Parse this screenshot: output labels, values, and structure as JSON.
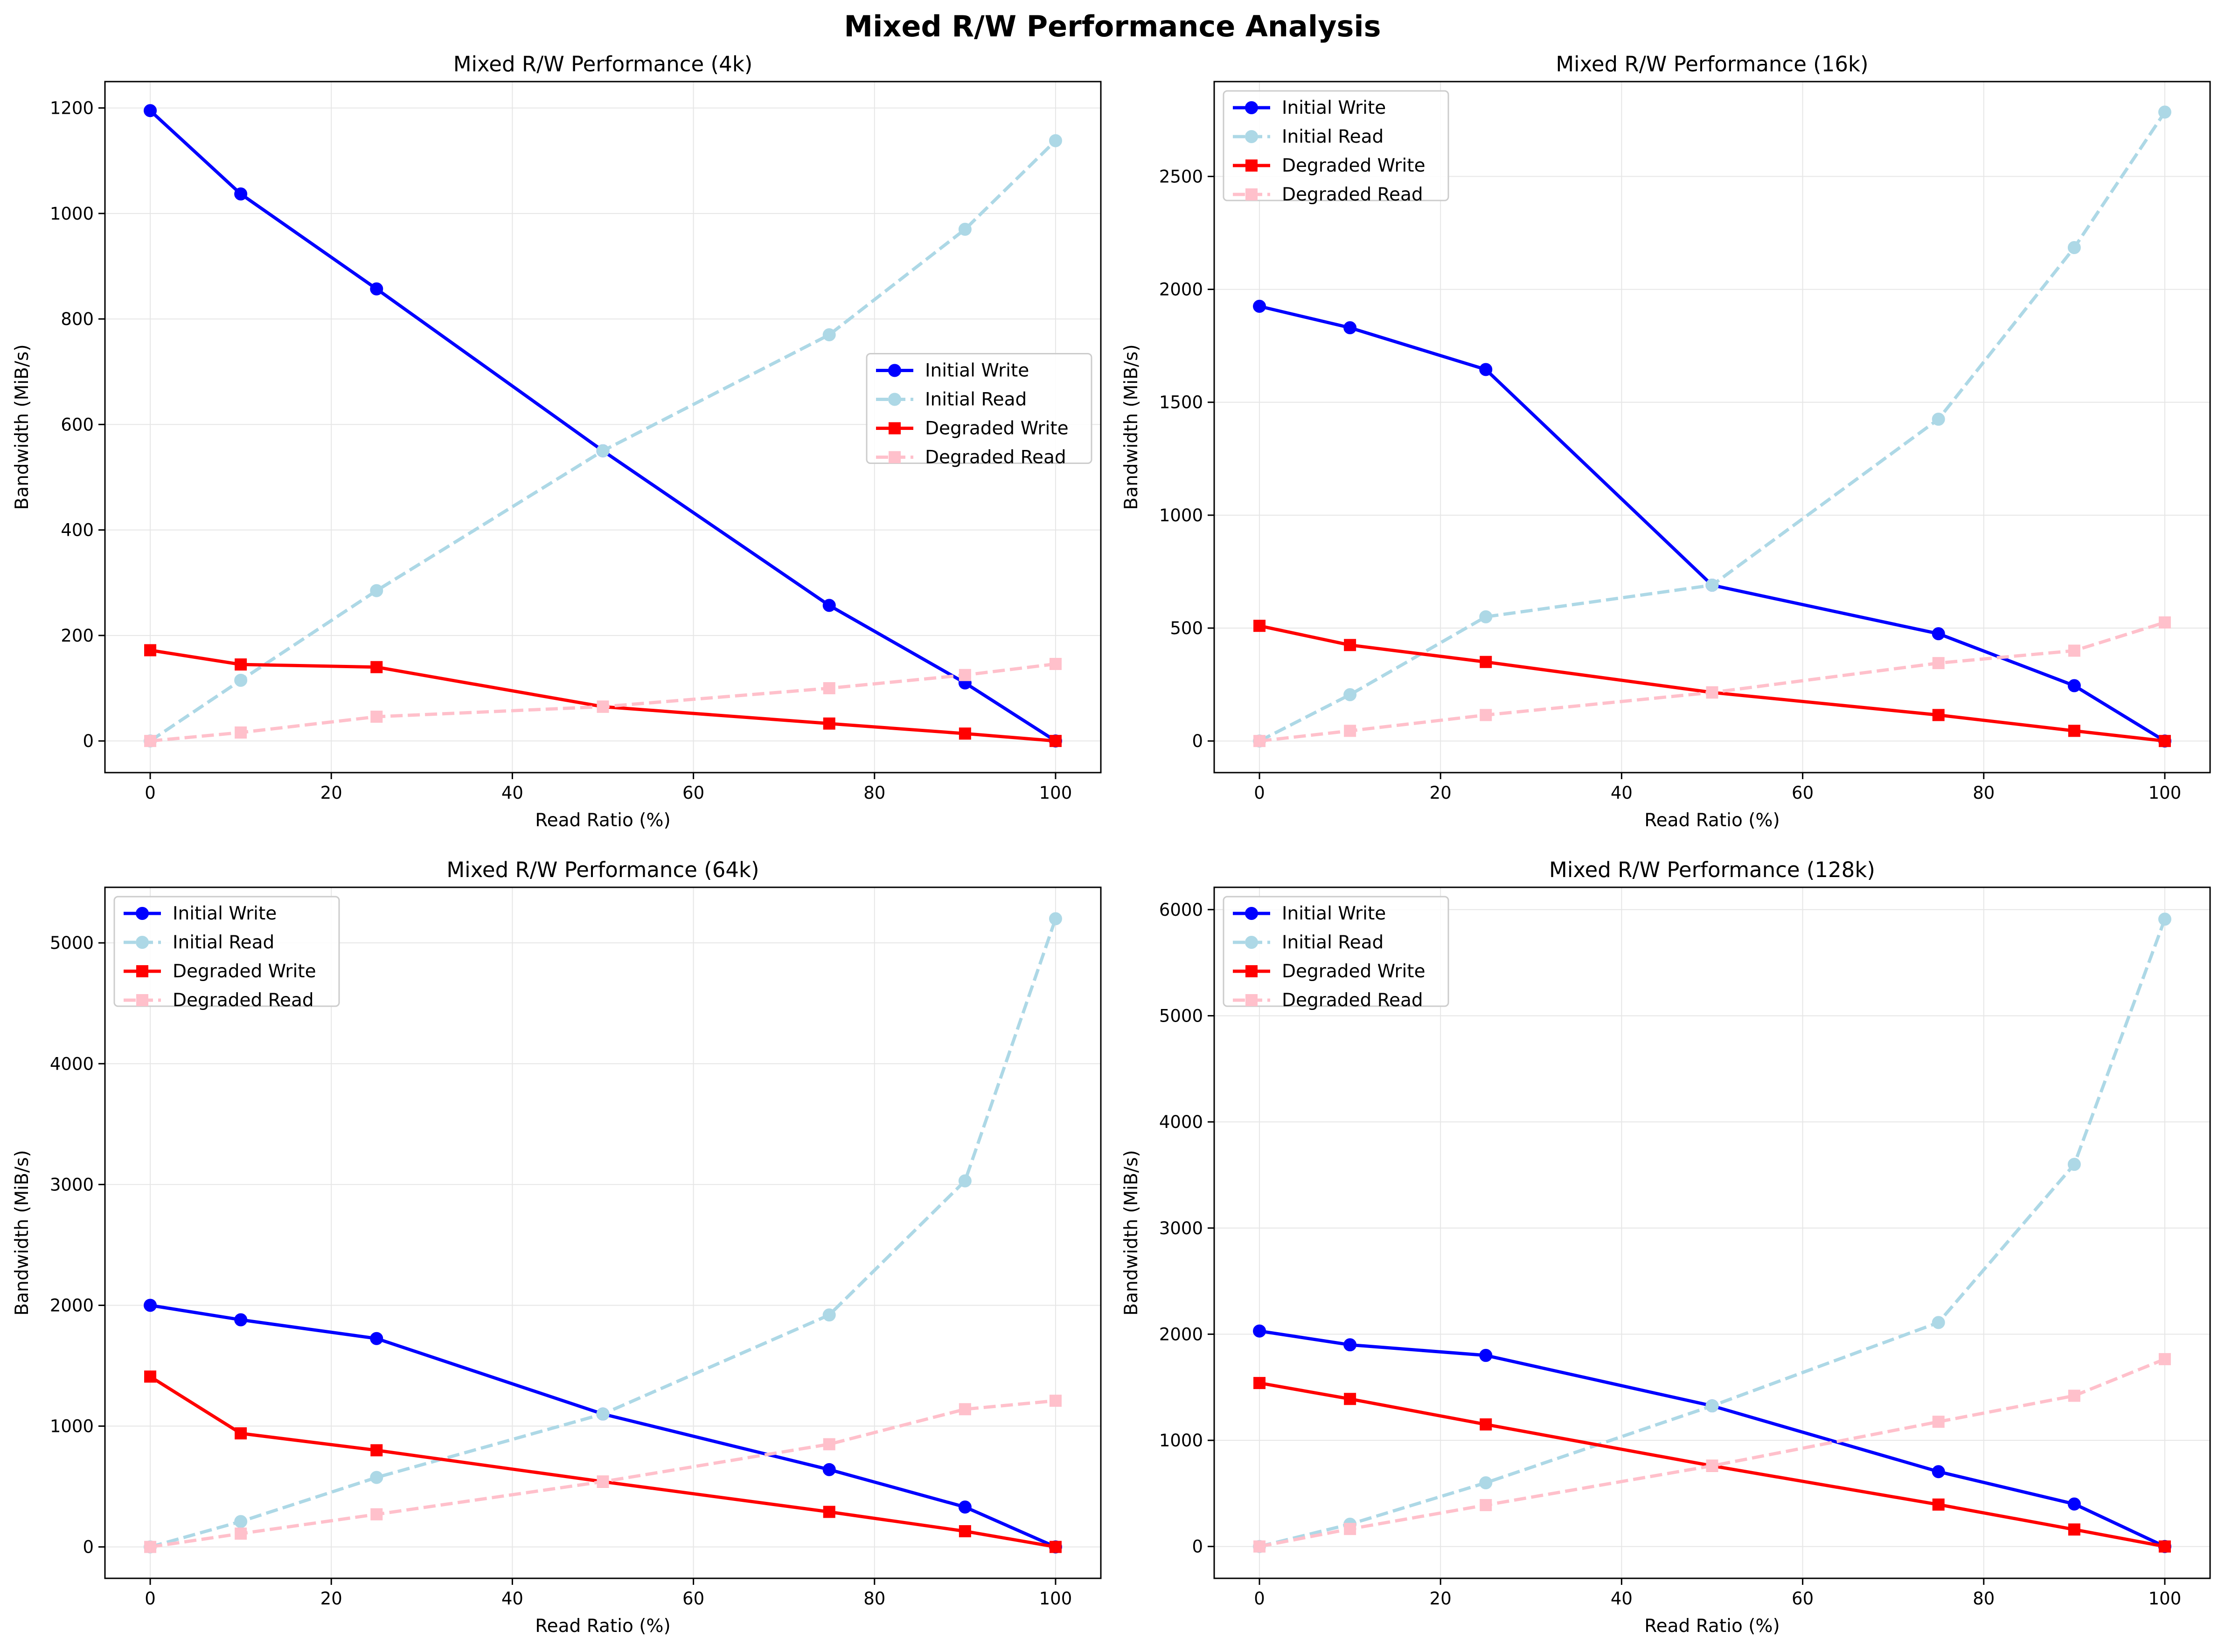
{
  "figure": {
    "suptitle": "Mixed R/W Performance Analysis"
  },
  "colors": {
    "initial_write": "#0000ff",
    "initial_read": "#add8e6",
    "degraded_write": "#ff0000",
    "degraded_read": "#ffc0cb",
    "grid": "#e6e6e6"
  },
  "chart_data": [
    {
      "type": "line",
      "title": "Mixed R/W Performance (4k)",
      "xlabel": "Read Ratio (%)",
      "ylabel": "Bandwidth (MiB/s)",
      "x": [
        0,
        10,
        25,
        50,
        75,
        90,
        100
      ],
      "xlim": [
        -5,
        105
      ],
      "ylim": [
        -60,
        1250
      ],
      "xticks": [
        0,
        20,
        40,
        60,
        80,
        100
      ],
      "yticks": [
        0,
        200,
        400,
        600,
        800,
        1000,
        1200
      ],
      "grid": true,
      "legend_position": "center-right",
      "series": [
        {
          "name": "Initial Write",
          "style": "solid",
          "marker": "circle",
          "color": "#0000ff",
          "values": [
            1195,
            1037,
            857,
            550,
            257,
            110,
            0
          ]
        },
        {
          "name": "Initial Read",
          "style": "dashed",
          "marker": "circle",
          "color": "#add8e6",
          "values": [
            0,
            115,
            285,
            550,
            770,
            970,
            1138
          ]
        },
        {
          "name": "Degraded Write",
          "style": "solid",
          "marker": "square",
          "color": "#ff0000",
          "values": [
            172,
            145,
            140,
            65,
            33,
            14,
            0
          ]
        },
        {
          "name": "Degraded Read",
          "style": "dashed",
          "marker": "square",
          "color": "#ffc0cb",
          "values": [
            0,
            16,
            46,
            65,
            100,
            125,
            146
          ]
        }
      ]
    },
    {
      "type": "line",
      "title": "Mixed R/W Performance (16k)",
      "xlabel": "Read Ratio (%)",
      "ylabel": "Bandwidth (MiB/s)",
      "x": [
        0,
        10,
        25,
        50,
        75,
        90,
        100
      ],
      "xlim": [
        -5,
        105
      ],
      "ylim": [
        -140,
        2920
      ],
      "xticks": [
        0,
        20,
        40,
        60,
        80,
        100
      ],
      "yticks": [
        0,
        500,
        1000,
        1500,
        2000,
        2500
      ],
      "grid": true,
      "legend_position": "top-left",
      "series": [
        {
          "name": "Initial Write",
          "style": "solid",
          "marker": "circle",
          "color": "#0000ff",
          "values": [
            1925,
            1830,
            1645,
            690,
            475,
            245,
            0
          ]
        },
        {
          "name": "Initial Read",
          "style": "dashed",
          "marker": "circle",
          "color": "#add8e6",
          "values": [
            0,
            205,
            550,
            690,
            1425,
            2185,
            2785
          ]
        },
        {
          "name": "Degraded Write",
          "style": "solid",
          "marker": "square",
          "color": "#ff0000",
          "values": [
            510,
            425,
            350,
            215,
            115,
            45,
            0
          ]
        },
        {
          "name": "Degraded Read",
          "style": "dashed",
          "marker": "square",
          "color": "#ffc0cb",
          "values": [
            0,
            45,
            115,
            215,
            345,
            400,
            525
          ]
        }
      ]
    },
    {
      "type": "line",
      "title": "Mixed R/W Performance (64k)",
      "xlabel": "Read Ratio (%)",
      "ylabel": "Bandwidth (MiB/s)",
      "x": [
        0,
        10,
        25,
        50,
        75,
        90,
        100
      ],
      "xlim": [
        -5,
        105
      ],
      "ylim": [
        -260,
        5460
      ],
      "xticks": [
        0,
        20,
        40,
        60,
        80,
        100
      ],
      "yticks": [
        0,
        1000,
        2000,
        3000,
        4000,
        5000
      ],
      "grid": true,
      "legend_position": "top-left",
      "series": [
        {
          "name": "Initial Write",
          "style": "solid",
          "marker": "circle",
          "color": "#0000ff",
          "values": [
            2000,
            1880,
            1725,
            1100,
            640,
            330,
            0
          ]
        },
        {
          "name": "Initial Read",
          "style": "dashed",
          "marker": "circle",
          "color": "#add8e6",
          "values": [
            0,
            210,
            575,
            1100,
            1920,
            3030,
            5200
          ]
        },
        {
          "name": "Degraded Write",
          "style": "solid",
          "marker": "square",
          "color": "#ff0000",
          "values": [
            1410,
            940,
            800,
            540,
            290,
            130,
            0
          ]
        },
        {
          "name": "Degraded Read",
          "style": "dashed",
          "marker": "square",
          "color": "#ffc0cb",
          "values": [
            0,
            110,
            270,
            540,
            850,
            1140,
            1210
          ]
        }
      ]
    },
    {
      "type": "line",
      "title": "Mixed R/W Performance (128k)",
      "xlabel": "Read Ratio (%)",
      "ylabel": "Bandwidth (MiB/s)",
      "x": [
        0,
        10,
        25,
        50,
        75,
        90,
        100
      ],
      "xlim": [
        -5,
        105
      ],
      "ylim": [
        -300,
        6210
      ],
      "xticks": [
        0,
        20,
        40,
        60,
        80,
        100
      ],
      "yticks": [
        0,
        1000,
        2000,
        3000,
        4000,
        5000,
        6000
      ],
      "grid": true,
      "legend_position": "top-left",
      "series": [
        {
          "name": "Initial Write",
          "style": "solid",
          "marker": "circle",
          "color": "#0000ff",
          "values": [
            2030,
            1900,
            1800,
            1325,
            705,
            400,
            0
          ]
        },
        {
          "name": "Initial Read",
          "style": "dashed",
          "marker": "circle",
          "color": "#add8e6",
          "values": [
            0,
            210,
            600,
            1325,
            2110,
            3600,
            5910
          ]
        },
        {
          "name": "Degraded Write",
          "style": "solid",
          "marker": "square",
          "color": "#ff0000",
          "values": [
            1540,
            1390,
            1150,
            760,
            395,
            160,
            0
          ]
        },
        {
          "name": "Degraded Read",
          "style": "dashed",
          "marker": "square",
          "color": "#ffc0cb",
          "values": [
            0,
            165,
            390,
            760,
            1175,
            1420,
            1765
          ]
        }
      ]
    }
  ]
}
